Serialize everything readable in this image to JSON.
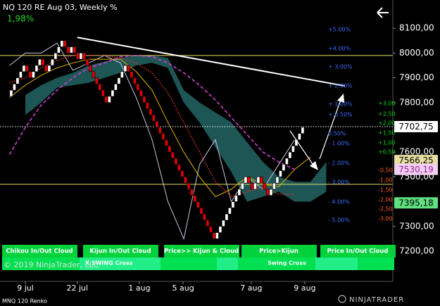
{
  "title": "NQ 120 RE Aug 03, Weekly %",
  "change": "1,98%",
  "instrument": "MNQ 120 Renko",
  "copyright": "© 2019 NinjaTrader, LLC",
  "logo": "NINJATRADER",
  "buttons": [
    "Chikou In/Out Cloud",
    "Kijun In/Out Cloud",
    "Price>> Kijun & Cloud",
    "Price>Kijun",
    "Price In/Out Cloud"
  ],
  "swing": [
    "X SWING Cross",
    "Swing Cross"
  ],
  "chart_data": {
    "type": "renko",
    "xlim": [
      -3,
      121
    ],
    "ylim": [
      7078,
      8214
    ],
    "xticks": [
      {
        "value": 5,
        "label": "9 jul"
      },
      {
        "value": 21.4,
        "label": "22 jul"
      },
      {
        "value": 41,
        "label": "1 aug"
      },
      {
        "value": 54.8,
        "label": "5 aug"
      },
      {
        "value": 76.3,
        "label": "7 aug"
      },
      {
        "value": 93.2,
        "label": "9 aug"
      }
    ],
    "yticks": [
      {
        "value": 8100,
        "label": "8100,00"
      },
      {
        "value": 8000,
        "label": "8000,00"
      },
      {
        "value": 7900,
        "label": "7900,00"
      },
      {
        "value": 7800,
        "label": "7800,00"
      },
      {
        "value": 7600,
        "label": "7600,00"
      },
      {
        "value": 7500,
        "label": "7500,00"
      },
      {
        "value": 7300,
        "label": "7300,00"
      },
      {
        "value": 7200,
        "label": "7200,00"
      }
    ],
    "bricks": {
      "up_color": "#ffffff",
      "down_color": "#e00000",
      "values": [
        7825,
        7850,
        7875,
        7900,
        7925,
        7950,
        7925,
        7900,
        7925,
        7950,
        7975,
        7950,
        7925,
        7950,
        7975,
        8000,
        8025,
        8050,
        8025,
        8000,
        8025,
        8000,
        7975,
        8000,
        7975,
        7950,
        7925,
        7900,
        7875,
        7850,
        7825,
        7800,
        7825,
        7850,
        7875,
        7900,
        7925,
        7950,
        7925,
        7900,
        7875,
        7850,
        7825,
        7800,
        7775,
        7750,
        7725,
        7700,
        7675,
        7650,
        7625,
        7600,
        7575,
        7550,
        7525,
        7500,
        7475,
        7450,
        7425,
        7400,
        7375,
        7350,
        7325,
        7300,
        7275,
        7250,
        7275,
        7300,
        7325,
        7350,
        7375,
        7400,
        7425,
        7450,
        7475,
        7500,
        7475,
        7450,
        7475,
        7500,
        7475,
        7450,
        7425,
        7450,
        7475,
        7500,
        7525,
        7550,
        7575,
        7600,
        7625,
        7650,
        7675,
        7700
      ]
    },
    "x": [
      0,
      5,
      10,
      15,
      20,
      25,
      30,
      35,
      40,
      45,
      50,
      55,
      60,
      65,
      70,
      75,
      80,
      85,
      90,
      95,
      100,
      105,
      110
    ],
    "cloud": {
      "color": "#1e5656",
      "top": [
        null,
        7830,
        7870,
        7900,
        7920,
        7950,
        7965,
        7980,
        7990,
        7990,
        7980,
        7850,
        7800,
        7760,
        7720,
        7640,
        7560,
        7500,
        7480,
        7480,
        7560,
        null,
        null
      ],
      "bottom": [
        null,
        7750,
        7800,
        7860,
        7870,
        7880,
        7900,
        7920,
        7950,
        7960,
        7940,
        7800,
        7720,
        7620,
        7520,
        7400,
        7420,
        7440,
        7400,
        7400,
        7440,
        null,
        null
      ]
    },
    "series": [
      {
        "color": "#c8c8dc",
        "style": "solid",
        "values": [
          7950,
          8000,
          8000,
          8040,
          7930,
          7960,
          7990,
          7960,
          7820,
          7650,
          7400,
          7250,
          7550,
          7650,
          7400,
          7500,
          7450,
          7550,
          7650,
          null,
          null,
          null,
          null
        ]
      },
      {
        "color": "#e6b400",
        "style": "solid",
        "values": [
          7820,
          7870,
          7910,
          7940,
          7960,
          7975,
          7975,
          7975,
          7925,
          7850,
          7720,
          7600,
          7500,
          7420,
          7450,
          7500,
          7470,
          7460,
          7530,
          7580,
          null,
          null,
          null
        ]
      },
      {
        "color": "#e03030",
        "style": "dotted",
        "values": [
          7880,
          7900,
          7940,
          7970,
          7990,
          7990,
          7990,
          7980,
          7960,
          7920,
          7840,
          7720,
          7600,
          7480,
          7420,
          7440,
          7460,
          7430,
          7430,
          null,
          null,
          null,
          null
        ]
      },
      {
        "color": "#d040d0",
        "style": "dashed",
        "values": [
          7590,
          7700,
          7790,
          7850,
          7900,
          7940,
          7960,
          7985,
          7990,
          7985,
          7960,
          7920,
          7870,
          7810,
          7740,
          7670,
          7600,
          7560,
          7530,
          null,
          null,
          null,
          null
        ]
      }
    ],
    "trendline": {
      "color": "#ffffff",
      "x": [
        21.4,
        105.9
      ],
      "values": [
        8063,
        7867
      ]
    },
    "hlines": [
      {
        "value": 7990,
        "color": "#e8e060",
        "style": "solid"
      },
      {
        "value": 7470,
        "color": "#e8e060",
        "style": "solid"
      },
      {
        "value": 7702.75,
        "color": "#ffffff",
        "style": "dotted"
      }
    ],
    "price_labels": [
      {
        "value": 7702.75,
        "label": "7702,75",
        "bg": "#ffffff",
        "color": "#000000"
      },
      {
        "value": 7566.25,
        "label": "7566,25",
        "bg": "#e8e0a0",
        "color": "#000000"
      },
      {
        "value": 7530.19,
        "label": "7530,19",
        "bg": "#f0d0f0",
        "color": "#a020a0"
      },
      {
        "value": 7395.18,
        "label": "7395,18",
        "bg": "#60e080",
        "color": "#000000"
      }
    ],
    "percent_labels": {
      "color": "#3a6cff",
      "labels": [
        "+5.00%",
        "+4.00%",
        "+ 3.00%",
        "+ 2.00%",
        "+ 1.00%",
        "+ 0.50%",
        "0.50%",
        "- 1.00%",
        "- 2.00%",
        "- 3.00%",
        "- 4.00%",
        "- 5.00%"
      ]
    },
    "point_labels": {
      "positive_color": "#00dd00",
      "negative_color": "#ff5a1e",
      "positive": [
        "+3,00",
        "+2,50",
        "+2,00",
        "+1,50",
        "+1,00",
        "+0,50"
      ],
      "negative": [
        "-0,50",
        "-1,00",
        "-1,50",
        "-2,00",
        "-2,50",
        "-3,00"
      ]
    }
  }
}
